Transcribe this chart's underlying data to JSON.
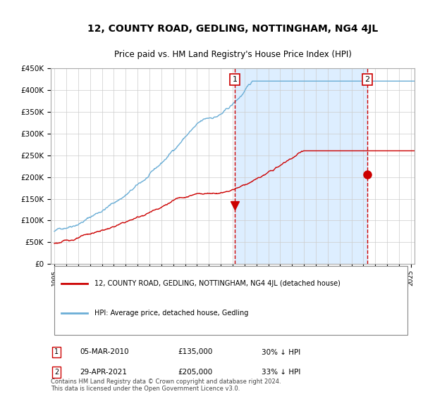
{
  "title": "12, COUNTY ROAD, GEDLING, NOTTINGHAM, NG4 4JL",
  "subtitle": "Price paid vs. HM Land Registry's House Price Index (HPI)",
  "legend_line1": "12, COUNTY ROAD, GEDLING, NOTTINGHAM, NG4 4JL (detached house)",
  "legend_line2": "HPI: Average price, detached house, Gedling",
  "annotation1_label": "1",
  "annotation1_date": "05-MAR-2010",
  "annotation1_price": "£135,000",
  "annotation1_pct": "30% ↓ HPI",
  "annotation2_label": "2",
  "annotation2_date": "29-APR-2021",
  "annotation2_price": "£205,000",
  "annotation2_pct": "33% ↓ HPI",
  "footer": "Contains HM Land Registry data © Crown copyright and database right 2024.\nThis data is licensed under the Open Government Licence v3.0.",
  "hpi_color": "#6baed6",
  "price_color": "#cc0000",
  "marker_color": "#cc0000",
  "dashed_line_color": "#cc0000",
  "annotation_box_color": "#cc0000",
  "shaded_region_color": "#ddeeff",
  "ylim": [
    0,
    450000
  ],
  "yticks": [
    0,
    50000,
    100000,
    150000,
    200000,
    250000,
    300000,
    350000,
    400000,
    450000
  ],
  "xlabel_start_year": 1995,
  "xlabel_end_year": 2025,
  "sale1_year": 2010.17,
  "sale1_price": 135000,
  "sale2_year": 2021.33,
  "sale2_price": 205000
}
